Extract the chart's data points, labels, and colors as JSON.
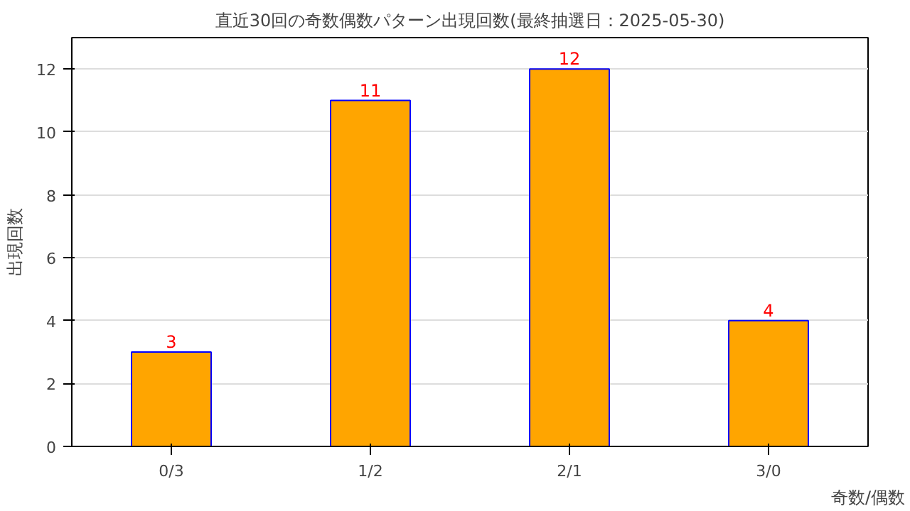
{
  "chart_data": {
    "type": "bar",
    "title": "直近30回の奇数偶数パターン出現回数(最終抽選日：2025-05-30)",
    "xlabel": "奇数/偶数",
    "ylabel": "出現回数",
    "categories": [
      "0/3",
      "1/2",
      "2/1",
      "3/0"
    ],
    "values": [
      3,
      11,
      12,
      4
    ],
    "color": "#ffa500",
    "ylim": [
      0,
      13
    ],
    "yticks": [
      0,
      2,
      4,
      6,
      8,
      10,
      12
    ],
    "grid": "y",
    "data_labels": true
  }
}
